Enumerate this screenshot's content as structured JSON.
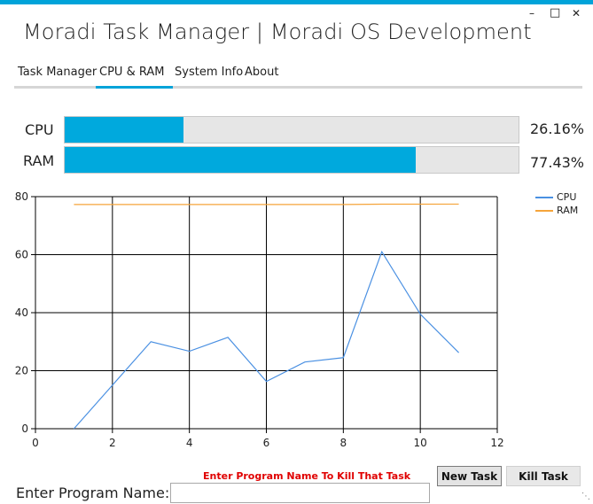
{
  "window": {
    "title": "Moradi Task Manager | Moradi OS Development",
    "minimize_glyph": "–",
    "maximize_glyph": "□",
    "close_glyph": "✕",
    "accent": "#00a3d9"
  },
  "tabs": [
    {
      "label": "Task Manager",
      "active": false
    },
    {
      "label": "CPU & RAM",
      "active": true
    },
    {
      "label": "System Info",
      "active": false
    },
    {
      "label": "About",
      "active": false
    }
  ],
  "usage": {
    "cpu": {
      "label": "CPU",
      "percent_text": "26.16%",
      "fraction": 0.2616
    },
    "ram": {
      "label": "RAM",
      "percent_text": "77.43%",
      "fraction": 0.7743
    },
    "bar_color": "#00a9dd"
  },
  "chart_data": {
    "type": "line",
    "xlim": [
      0,
      12
    ],
    "ylim": [
      0,
      80
    ],
    "xticks": [
      0,
      2,
      4,
      6,
      8,
      10,
      12
    ],
    "yticks": [
      0,
      20,
      40,
      60,
      80
    ],
    "grid": true,
    "legend": "top-right",
    "series": [
      {
        "name": "CPU",
        "color": "#4a90e2",
        "x": [
          1,
          2,
          3,
          4,
          5,
          6,
          7,
          8,
          9,
          10,
          11
        ],
        "y": [
          0,
          15,
          30,
          26.7,
          31.5,
          16.3,
          23,
          24.5,
          61,
          39.5,
          26.2
        ]
      },
      {
        "name": "RAM",
        "color": "#f5a43a",
        "x": [
          1,
          2,
          3,
          4,
          5,
          6,
          7,
          8,
          9,
          10,
          11
        ],
        "y": [
          77.3,
          77.3,
          77.3,
          77.3,
          77.3,
          77.3,
          77.3,
          77.3,
          77.4,
          77.4,
          77.43
        ]
      }
    ]
  },
  "kill": {
    "hint": "Enter Program Name To Kill That Task",
    "label": "Enter Program Name:",
    "input_value": "",
    "new_task_label": "New Task",
    "kill_task_label": "Kill Task"
  }
}
